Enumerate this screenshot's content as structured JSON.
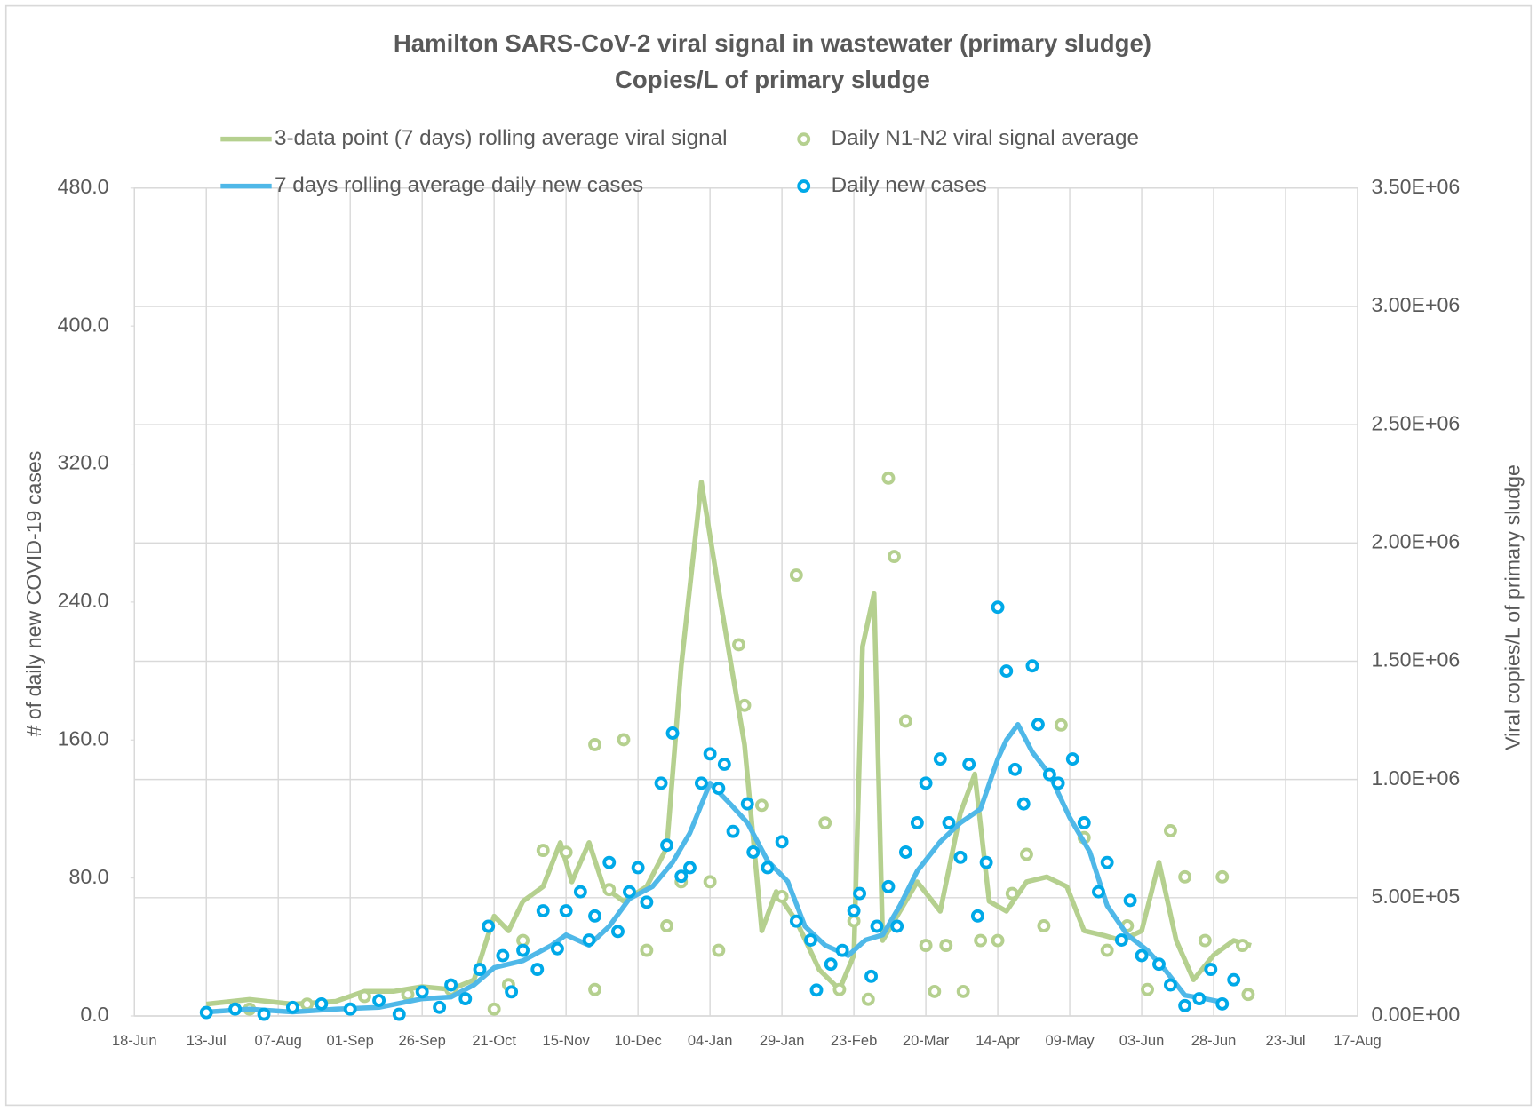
{
  "chart_data": {
    "type": "line",
    "title": "Hamilton SARS-CoV-2 viral signal in wastewater (primary sludge)",
    "subtitle": "Copies/L of primary sludge",
    "y_label": "# of daily new COVID-19 cases",
    "y2_label": "Viral copies/L of primary sludge",
    "xlim": [
      0,
      425
    ],
    "xticks": [
      {
        "value": 0,
        "label": "18-Jun"
      },
      {
        "value": 25,
        "label": "13-Jul"
      },
      {
        "value": 50,
        "label": "07-Aug"
      },
      {
        "value": 75,
        "label": "01-Sep"
      },
      {
        "value": 100,
        "label": "26-Sep"
      },
      {
        "value": 125,
        "label": "21-Oct"
      },
      {
        "value": 150,
        "label": "15-Nov"
      },
      {
        "value": 175,
        "label": "10-Dec"
      },
      {
        "value": 200,
        "label": "04-Jan"
      },
      {
        "value": 225,
        "label": "29-Jan"
      },
      {
        "value": 250,
        "label": "23-Feb"
      },
      {
        "value": 275,
        "label": "20-Mar"
      },
      {
        "value": 300,
        "label": "14-Apr"
      },
      {
        "value": 325,
        "label": "09-May"
      },
      {
        "value": 350,
        "label": "03-Jun"
      },
      {
        "value": 375,
        "label": "28-Jun"
      },
      {
        "value": 400,
        "label": "23-Jul"
      },
      {
        "value": 425,
        "label": "17-Aug"
      }
    ],
    "ylim": [
      0,
      480
    ],
    "yticks": [
      {
        "value": 0,
        "label": "0.0"
      },
      {
        "value": 80,
        "label": "80.0"
      },
      {
        "value": 160,
        "label": "160.0"
      },
      {
        "value": 240,
        "label": "240.0"
      },
      {
        "value": 320,
        "label": "320.0"
      },
      {
        "value": 400,
        "label": "400.0"
      },
      {
        "value": 480,
        "label": "480.0"
      }
    ],
    "y2lim": [
      0,
      3500000
    ],
    "y2ticks": [
      {
        "value": 0,
        "label": "0.00E+00"
      },
      {
        "value": 500000,
        "label": "5.00E+05"
      },
      {
        "value": 1000000,
        "label": "1.00E+06"
      },
      {
        "value": 1500000,
        "label": "1.50E+06"
      },
      {
        "value": 2000000,
        "label": "2.00E+06"
      },
      {
        "value": 2500000,
        "label": "2.50E+06"
      },
      {
        "value": 3000000,
        "label": "3.00E+06"
      },
      {
        "value": 3500000,
        "label": "3.50E+06"
      }
    ],
    "grid": true,
    "series": [
      {
        "name": "3-data point (7 days) rolling average viral signal",
        "type": "line",
        "axis": "y2",
        "color": "#b5d08f",
        "x": [
          25,
          40,
          55,
          70,
          80,
          90,
          100,
          110,
          118,
          125,
          130,
          135,
          142,
          148,
          152,
          158,
          163,
          170,
          178,
          185,
          190,
          197,
          204,
          212,
          218,
          223,
          230,
          238,
          245,
          250,
          253,
          257,
          260,
          266,
          272,
          280,
          287,
          292,
          297,
          303,
          310,
          317,
          324,
          330,
          337,
          343,
          350,
          356,
          362,
          368,
          375,
          382,
          388
        ],
        "values": [
          50000,
          70000,
          50000,
          62000,
          104000,
          104000,
          124000,
          112000,
          153000,
          422000,
          360000,
          485000,
          547000,
          733000,
          567000,
          733000,
          547000,
          485000,
          547000,
          712000,
          1479000,
          2257000,
          1727000,
          1147000,
          360000,
          526000,
          402000,
          195000,
          112000,
          257000,
          1562000,
          1785000,
          319000,
          443000,
          567000,
          443000,
          857000,
          1023000,
          485000,
          443000,
          567000,
          588000,
          547000,
          360000,
          340000,
          319000,
          360000,
          650000,
          319000,
          153000,
          257000,
          319000,
          298000
        ]
      },
      {
        "name": "Daily N1-N2 viral signal average",
        "type": "scatter",
        "axis": "y2",
        "color": "#b5d08f",
        "x": [
          40,
          60,
          80,
          95,
          110,
          125,
          130,
          135,
          142,
          150,
          160,
          160,
          165,
          170,
          178,
          185,
          190,
          200,
          203,
          210,
          212,
          218,
          225,
          230,
          240,
          245,
          250,
          255,
          262,
          264,
          268,
          275,
          278,
          282,
          288,
          294,
          300,
          305,
          310,
          316,
          322,
          330,
          338,
          345,
          352,
          360,
          365,
          372,
          378,
          385,
          387
        ],
        "values": [
          29000,
          49700,
          82800,
          91100,
          111800,
          29000,
          132500,
          318900,
          700000,
          692000,
          1147300,
          111800,
          534300,
          1168000,
          277500,
          381100,
          567500,
          567500,
          277500,
          1569800,
          1313000,
          890500,
          505300,
          1863900,
          816000,
          111800,
          401800,
          70400,
          2274000,
          1942600,
          1246700,
          298200,
          103600,
          298200,
          103600,
          318900,
          318900,
          517800,
          683400,
          381100,
          1230200,
          753800,
          277500,
          381100,
          111800,
          782800,
          588200,
          318900,
          588200,
          298200,
          91100
        ]
      },
      {
        "name": "7 days rolling average daily new cases",
        "type": "line",
        "color": "#4fb8e8",
        "x": [
          25,
          40,
          55,
          70,
          85,
          100,
          110,
          118,
          125,
          135,
          145,
          150,
          158,
          165,
          172,
          180,
          187,
          193,
          200,
          207,
          213,
          220,
          227,
          233,
          240,
          248,
          254,
          260,
          266,
          272,
          280,
          287,
          294,
          300,
          303,
          307,
          312,
          318,
          325,
          332,
          338,
          345,
          352,
          358,
          365,
          372,
          378
        ],
        "values": [
          2.3,
          4,
          2.3,
          4,
          5,
          10,
          11,
          18,
          28,
          32,
          41,
          47,
          41,
          52,
          68,
          75,
          89,
          106,
          135,
          123,
          112,
          90,
          78,
          52,
          41,
          35,
          44,
          47,
          64,
          84,
          101,
          112,
          120,
          149,
          160,
          169,
          153,
          140,
          115,
          95,
          64,
          47,
          38,
          27,
          12,
          10,
          8
        ]
      },
      {
        "name": "Daily new cases",
        "type": "scatter",
        "color": "#00a9e8",
        "x": [
          25,
          35,
          45,
          55,
          65,
          75,
          85,
          92,
          100,
          106,
          110,
          115,
          120,
          123,
          128,
          131,
          135,
          140,
          142,
          147,
          150,
          155,
          158,
          160,
          165,
          168,
          172,
          175,
          178,
          183,
          185,
          187,
          190,
          193,
          197,
          200,
          203,
          205,
          208,
          213,
          215,
          220,
          225,
          230,
          235,
          237,
          242,
          246,
          250,
          252,
          256,
          258,
          262,
          265,
          268,
          272,
          275,
          280,
          283,
          287,
          290,
          293,
          296,
          300,
          303,
          306,
          309,
          312,
          314,
          318,
          321,
          326,
          330,
          335,
          338,
          343,
          346,
          350,
          356,
          360,
          365,
          370,
          374,
          378,
          382
        ],
        "values": [
          2,
          4,
          1,
          5,
          7,
          4,
          9,
          1,
          14,
          5,
          18,
          10,
          27,
          52,
          35,
          14,
          38,
          27,
          61,
          39,
          61,
          72,
          44,
          58,
          89,
          49,
          72,
          86,
          66,
          135,
          99,
          164,
          81,
          86,
          135,
          152,
          132,
          146,
          107,
          123,
          95,
          86,
          101,
          55,
          44,
          15,
          30,
          38,
          61,
          71,
          23,
          52,
          75,
          52,
          95,
          112,
          135,
          149,
          112,
          92,
          146,
          58,
          89,
          237,
          200,
          143,
          123,
          203,
          169,
          140,
          135,
          149,
          112,
          72,
          89,
          44,
          67,
          35,
          30,
          18,
          6,
          10,
          27,
          7,
          21
        ]
      }
    ]
  }
}
